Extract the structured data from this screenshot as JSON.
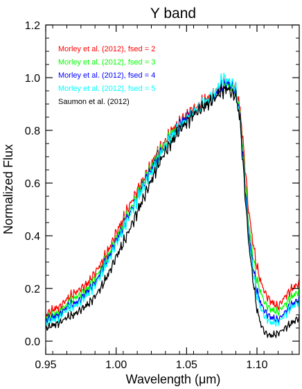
{
  "chart_data": {
    "type": "line",
    "title": "Y band",
    "xlabel": "Wavelength (μm)",
    "ylabel": "Normalized Flux",
    "xlim": [
      0.95,
      1.13
    ],
    "ylim": [
      -0.05,
      1.2
    ],
    "xticks": [
      "0.95",
      "1.00",
      "1.05",
      "1.10"
    ],
    "yticks": [
      "0.0",
      "0.2",
      "0.4",
      "0.6",
      "0.8",
      "1.0",
      "1.2"
    ],
    "xtick_values": [
      0.95,
      1.0,
      1.05,
      1.1
    ],
    "ytick_values": [
      0.0,
      0.2,
      0.4,
      0.6,
      0.8,
      1.0,
      1.2
    ],
    "grid": false,
    "legend_position": "top-left",
    "x": [
      0.95,
      0.955,
      0.96,
      0.965,
      0.97,
      0.975,
      0.98,
      0.985,
      0.99,
      0.995,
      1.0,
      1.005,
      1.01,
      1.015,
      1.02,
      1.025,
      1.03,
      1.035,
      1.04,
      1.045,
      1.05,
      1.055,
      1.06,
      1.065,
      1.07,
      1.073,
      1.076,
      1.079,
      1.082,
      1.085,
      1.088,
      1.091,
      1.094,
      1.097,
      1.1,
      1.103,
      1.106,
      1.11,
      1.115,
      1.12,
      1.125,
      1.13
    ],
    "series": [
      {
        "name": "Morley et al. (2012), fsed = 2",
        "color": "#ff0000",
        "values": [
          0.1,
          0.12,
          0.13,
          0.16,
          0.18,
          0.2,
          0.22,
          0.26,
          0.3,
          0.35,
          0.41,
          0.46,
          0.52,
          0.57,
          0.62,
          0.67,
          0.72,
          0.76,
          0.8,
          0.83,
          0.86,
          0.88,
          0.9,
          0.92,
          0.94,
          0.96,
          0.97,
          0.98,
          0.97,
          0.96,
          0.88,
          0.7,
          0.5,
          0.38,
          0.28,
          0.22,
          0.18,
          0.15,
          0.13,
          0.17,
          0.2,
          0.22
        ]
      },
      {
        "name": "Morley et al. (2012), fsed = 3",
        "color": "#00ff00",
        "values": [
          0.09,
          0.1,
          0.11,
          0.14,
          0.16,
          0.18,
          0.2,
          0.24,
          0.28,
          0.33,
          0.39,
          0.44,
          0.5,
          0.55,
          0.61,
          0.66,
          0.71,
          0.75,
          0.79,
          0.82,
          0.85,
          0.87,
          0.89,
          0.91,
          0.93,
          0.95,
          0.96,
          0.97,
          0.96,
          0.95,
          0.86,
          0.66,
          0.45,
          0.33,
          0.23,
          0.18,
          0.14,
          0.12,
          0.11,
          0.14,
          0.17,
          0.19
        ]
      },
      {
        "name": "Morley et al. (2012), fsed = 4",
        "color": "#0000ff",
        "values": [
          0.08,
          0.09,
          0.1,
          0.13,
          0.14,
          0.16,
          0.19,
          0.22,
          0.27,
          0.32,
          0.38,
          0.43,
          0.49,
          0.54,
          0.6,
          0.65,
          0.7,
          0.74,
          0.78,
          0.82,
          0.85,
          0.87,
          0.89,
          0.91,
          0.93,
          0.95,
          0.97,
          0.98,
          0.97,
          0.95,
          0.85,
          0.63,
          0.42,
          0.29,
          0.19,
          0.14,
          0.11,
          0.09,
          0.08,
          0.11,
          0.14,
          0.16
        ]
      },
      {
        "name": "Morley et al. (2012), fsed = 5",
        "color": "#00ffff",
        "values": [
          0.07,
          0.08,
          0.09,
          0.12,
          0.13,
          0.15,
          0.18,
          0.21,
          0.26,
          0.31,
          0.37,
          0.42,
          0.48,
          0.54,
          0.59,
          0.64,
          0.69,
          0.74,
          0.78,
          0.81,
          0.84,
          0.87,
          0.89,
          0.91,
          0.94,
          0.97,
          1.0,
          0.99,
          0.98,
          0.96,
          0.84,
          0.61,
          0.4,
          0.27,
          0.17,
          0.12,
          0.09,
          0.07,
          0.07,
          0.1,
          0.13,
          0.15
        ]
      },
      {
        "name": "Saumon et al. (2012)",
        "color": "#000000",
        "values": [
          0.05,
          0.06,
          0.07,
          0.09,
          0.1,
          0.12,
          0.14,
          0.17,
          0.21,
          0.26,
          0.32,
          0.37,
          0.43,
          0.49,
          0.55,
          0.61,
          0.67,
          0.72,
          0.76,
          0.8,
          0.83,
          0.86,
          0.88,
          0.9,
          0.92,
          0.94,
          0.95,
          0.96,
          0.94,
          0.93,
          0.84,
          0.6,
          0.38,
          0.24,
          0.12,
          0.06,
          0.03,
          0.02,
          0.03,
          0.05,
          0.07,
          0.09
        ]
      }
    ]
  }
}
